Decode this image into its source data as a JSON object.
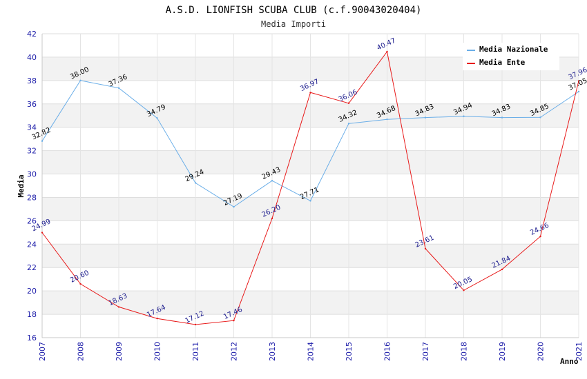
{
  "chart_data": {
    "type": "line",
    "title": "A.S.D. LIONFISH SCUBA CLUB (c.f.90043020404)",
    "subtitle": "Media Importi",
    "xlabel": "Anno",
    "ylabel": "Media",
    "ylim": [
      16,
      42
    ],
    "yticks": [
      16,
      18,
      20,
      22,
      24,
      26,
      28,
      30,
      32,
      34,
      36,
      38,
      40,
      42
    ],
    "categories": [
      "2007",
      "2008",
      "2009",
      "2010",
      "2011",
      "2012",
      "2013",
      "2014",
      "2015",
      "2016",
      "2017",
      "2018",
      "2019",
      "2020",
      "2021"
    ],
    "legend_position": "top-right",
    "series": [
      {
        "name": "Media Nazionale",
        "color": "#6aaee8",
        "values": [
          32.82,
          38.0,
          37.36,
          34.79,
          29.24,
          27.19,
          29.43,
          27.71,
          34.32,
          34.68,
          34.83,
          34.94,
          34.83,
          34.85,
          37.05
        ],
        "labels": [
          "32.82",
          "38.00",
          "37.36",
          "34.79",
          "29.24",
          "27.19",
          "29.43",
          "27.71",
          "34.32",
          "34.68",
          "34.83",
          "34.94",
          "34.83",
          "34.85",
          "37.05"
        ]
      },
      {
        "name": "Media Ente",
        "color": "#e81a1a",
        "values": [
          24.99,
          20.6,
          18.63,
          17.64,
          17.12,
          17.46,
          26.2,
          36.97,
          36.06,
          40.47,
          23.61,
          20.05,
          21.84,
          24.66,
          37.96
        ],
        "labels": [
          "24.99",
          "20.60",
          "18.63",
          "17.64",
          "17.12",
          "17.46",
          "26.20",
          "36.97",
          "36.06",
          "40.47",
          "23.61",
          "20.05",
          "21.84",
          "24.66",
          "37.96"
        ]
      }
    ]
  }
}
